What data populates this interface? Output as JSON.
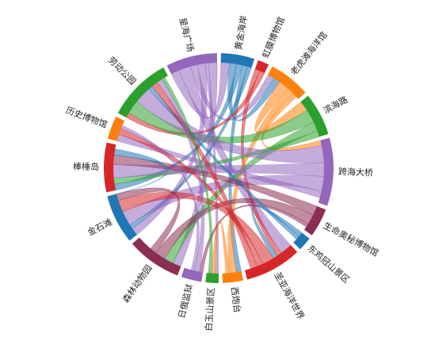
{
  "chart_data": {
    "type": "chord",
    "title": "",
    "categories": [
      {
        "name": "黄金海岸",
        "weight": 3.6,
        "color": "#1f77b4"
      },
      {
        "name": "虹膜博物馆",
        "weight": 1.2,
        "color": "#d62728"
      },
      {
        "name": "老虎滩海洋馆",
        "weight": 4.5,
        "color": "#ff7f0e"
      },
      {
        "name": "滨海路",
        "weight": 4.6,
        "color": "#2ca02c"
      },
      {
        "name": "跨海大桥",
        "weight": 7.3,
        "color": "#9467bd"
      },
      {
        "name": "生命奥秘博物馆",
        "weight": 3.1,
        "color": "#8c2d52"
      },
      {
        "name": "东鸡冠山景区",
        "weight": 1.5,
        "color": "#1f77b4"
      },
      {
        "name": "圣亚海洋世界",
        "weight": 6.1,
        "color": "#d62728"
      },
      {
        "name": "西炮台",
        "weight": 2.2,
        "color": "#ff7f0e"
      },
      {
        "name": "白玉山景区",
        "weight": 1.4,
        "color": "#2ca02c"
      },
      {
        "name": "日俄监狱",
        "weight": 2.2,
        "color": "#9467bd"
      },
      {
        "name": "森林动物园",
        "weight": 5.9,
        "color": "#8c2d52"
      },
      {
        "name": "金石滩",
        "weight": 5.3,
        "color": "#1f77b4"
      },
      {
        "name": "棒棰岛",
        "weight": 5.3,
        "color": "#d62728"
      },
      {
        "name": "历史博物馆",
        "weight": 2.5,
        "color": "#ff7f0e"
      },
      {
        "name": "劳动公园",
        "weight": 6.9,
        "color": "#2ca02c"
      },
      {
        "name": "星海广场",
        "weight": 5.5,
        "color": "#9467bd"
      }
    ],
    "links": [
      {
        "source": "星海广场",
        "target": "黄金海岸",
        "value": 1.0
      },
      {
        "source": "星海广场",
        "target": "圣亚海洋世界",
        "value": 1.4
      },
      {
        "source": "星海广场",
        "target": "老虎滩海洋馆",
        "value": 0.8
      },
      {
        "source": "星海广场",
        "target": "金石滩",
        "value": 0.9
      },
      {
        "source": "星海广场",
        "target": "白玉山景区",
        "value": 0.4
      },
      {
        "source": "星海广场",
        "target": "森林动物园",
        "value": 1.0
      },
      {
        "source": "黄金海岸",
        "target": "老虎滩海洋馆",
        "value": 0.8
      },
      {
        "source": "黄金海岸",
        "target": "棒棰岛",
        "value": 0.7
      },
      {
        "source": "黄金海岸",
        "target": "西炮台",
        "value": 0.6
      },
      {
        "source": "黄金海岸",
        "target": "金石滩",
        "value": 0.5
      },
      {
        "source": "虹膜博物馆",
        "target": "圣亚海洋世界",
        "value": 0.6
      },
      {
        "source": "虹膜博物馆",
        "target": "劳动公园",
        "value": 0.6
      },
      {
        "source": "老虎滩海洋馆",
        "target": "滨海路",
        "value": 1.2
      },
      {
        "source": "老虎滩海洋馆",
        "target": "西炮台",
        "value": 0.8
      },
      {
        "source": "老虎滩海洋馆",
        "target": "跨海大桥",
        "value": 0.6
      },
      {
        "source": "滨海路",
        "target": "劳动公园",
        "value": 1.6
      },
      {
        "source": "滨海路",
        "target": "森林动物园",
        "value": 1.1
      },
      {
        "source": "滨海路",
        "target": "棒棰岛",
        "value": 0.7
      },
      {
        "source": "跨海大桥",
        "target": "劳动公园",
        "value": 2.0
      },
      {
        "source": "跨海大桥",
        "target": "棒棰岛",
        "value": 1.6
      },
      {
        "source": "跨海大桥",
        "target": "金石滩",
        "value": 1.7
      },
      {
        "source": "跨海大桥",
        "target": "历史博物馆",
        "value": 0.8
      },
      {
        "source": "生命奥秘博物馆",
        "target": "棒棰岛",
        "value": 1.1
      },
      {
        "source": "生命奥秘博物馆",
        "target": "森林动物园",
        "value": 1.2
      },
      {
        "source": "生命奥秘博物馆",
        "target": "日俄监狱",
        "value": 0.4
      },
      {
        "source": "东鸡冠山景区",
        "target": "圣亚海洋世界",
        "value": 0.5
      },
      {
        "source": "东鸡冠山景区",
        "target": "劳动公园",
        "value": 0.5
      },
      {
        "source": "圣亚海洋世界",
        "target": "金石滩",
        "value": 1.4
      },
      {
        "source": "圣亚海洋世界",
        "target": "历史博物馆",
        "value": 0.7
      },
      {
        "source": "圣亚海洋世界",
        "target": "劳动公园",
        "value": 0.8
      },
      {
        "source": "西炮台",
        "target": "白玉山景区",
        "value": 0.4
      },
      {
        "source": "日俄监狱",
        "target": "劳动公园",
        "value": 0.6
      },
      {
        "source": "日俄监狱",
        "target": "历史博物馆",
        "value": 0.4
      },
      {
        "source": "森林动物园",
        "target": "金石滩",
        "value": 0.8
      },
      {
        "source": "金石滩",
        "target": "棒棰岛",
        "value": 0.7
      },
      {
        "source": "白玉山景区",
        "target": "劳动公园",
        "value": 0.4
      }
    ]
  }
}
